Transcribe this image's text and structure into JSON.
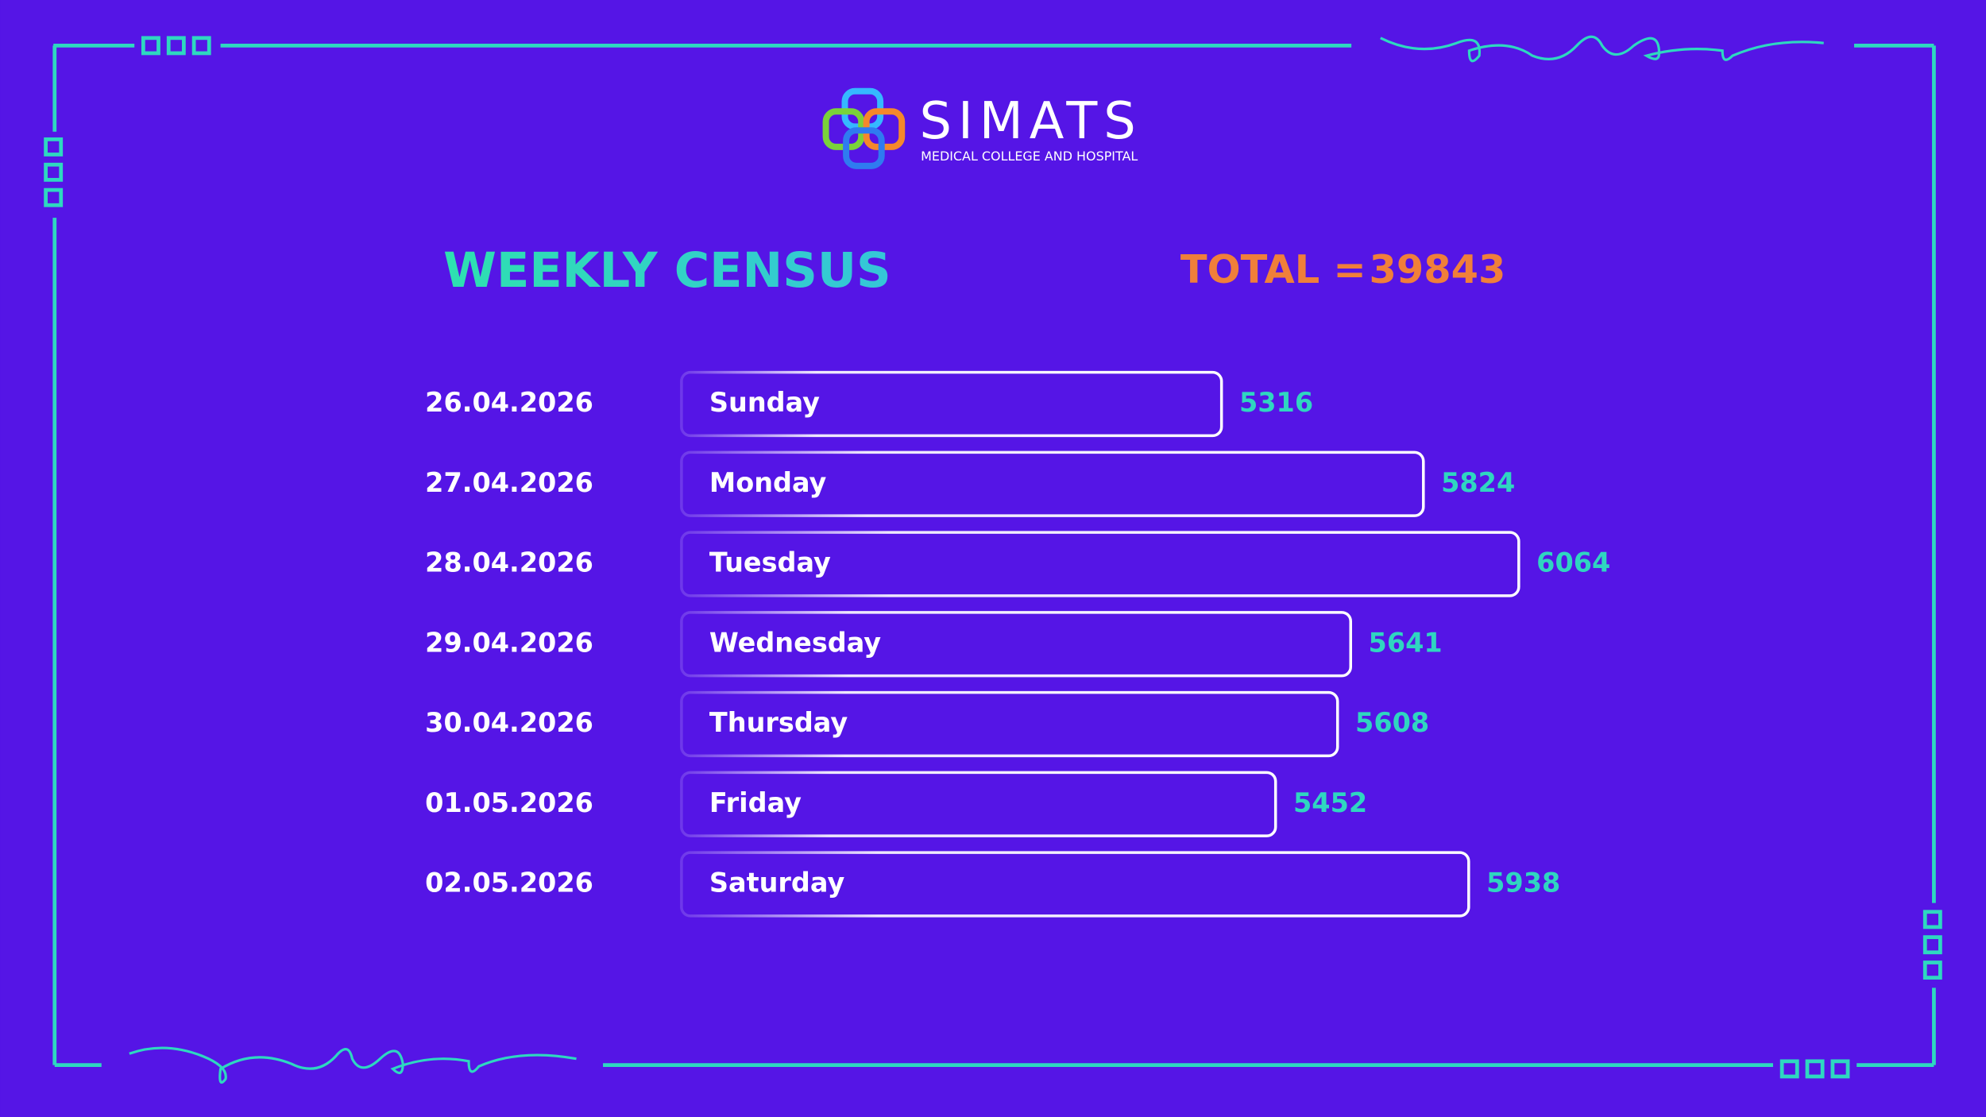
{
  "logo": {
    "name": "SIMATS",
    "subtitle": "MEDICAL COLLEGE AND HOSPITAL"
  },
  "chart_data": {
    "type": "bar",
    "orientation": "horizontal",
    "title": "WEEKLY CENSUS",
    "total_label": "TOTAL =",
    "total": 39843,
    "dates": [
      "26.04.2026",
      "27.04.2026",
      "28.04.2026",
      "29.04.2026",
      "30.04.2026",
      "01.05.2026",
      "02.05.2026"
    ],
    "categories": [
      "Sunday",
      "Monday",
      "Tuesday",
      "Wednesday",
      "Thursday",
      "Friday",
      "Saturday"
    ],
    "values": [
      5316,
      5824,
      6064,
      5641,
      5608,
      5452,
      5938
    ],
    "xlim": [
      3957,
      6500
    ],
    "color": "#ffffff",
    "label_color": "#2fd6c0"
  }
}
